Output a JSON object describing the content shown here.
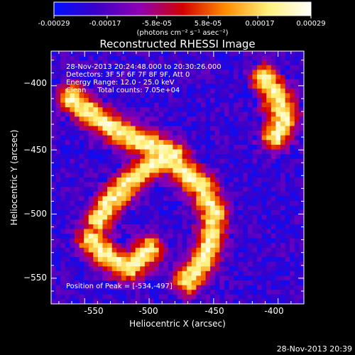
{
  "colorbar": {
    "ticks": [
      "-0.00029",
      "-0.00017",
      "-5.8e-05",
      "5.8e-05",
      "0.00017",
      "0.00029"
    ],
    "tick_values": [
      -0.00029,
      -0.00017,
      -5.8e-05,
      5.8e-05,
      0.00017,
      0.00029
    ],
    "range": [
      -0.00029,
      0.00029
    ],
    "units_label": "(photons cm⁻² s⁻¹ asec⁻²)",
    "colors": [
      "#0010ff",
      "#3b00c8",
      "#8f00b4",
      "#d20000",
      "#ff8c00",
      "#fff17a",
      "#ffffff"
    ]
  },
  "chart_data": {
    "type": "heatmap",
    "title": "Reconstructed RHESSI Image",
    "xlabel": "Heliocentric X (arcsec)",
    "ylabel": "Heliocentric Y (arcsec)",
    "xlim": [
      -576,
      -380
    ],
    "ylim": [
      -570,
      -373
    ],
    "x_ticks": [
      -550,
      -500,
      -450,
      -400
    ],
    "y_ticks": [
      -400,
      -450,
      -500,
      -550
    ],
    "x_tick_labels": [
      "-550",
      "-500",
      "-450",
      "-400"
    ],
    "y_tick_labels": [
      "−400",
      "−450",
      "−500",
      "−550"
    ],
    "peak": [
      -534,
      -497
    ],
    "annotations": {
      "time": "28-Nov-2013 20:24:48.000 to 20:30:26.000",
      "detectors": "Detectors: 3F 5F 6F 7F 8F 9F, Att 0",
      "energy": "Energy Range: 12.0 - 25.0 keV",
      "method": "Clean     Total counts: 7.05e+04",
      "peak_text": "Position of Peak = [-534,-497]"
    },
    "bright_structures": [
      {
        "x": [
          -560,
          -540,
          -525,
          -510,
          -495,
          -480
        ],
        "y": [
          -410,
          -425,
          -435,
          -442,
          -448,
          -455
        ]
      },
      {
        "x": [
          -540,
          -530,
          -515,
          -500,
          -488,
          -480,
          -470,
          -458,
          -450,
          -452,
          -460,
          -470
        ],
        "y": [
          -505,
          -490,
          -475,
          -462,
          -455,
          -460,
          -470,
          -480,
          -500,
          -520,
          -540,
          -552
        ]
      },
      {
        "x": [
          -545,
          -530,
          -515,
          -500
        ],
        "y": [
          -520,
          -535,
          -542,
          -528
        ]
      },
      {
        "x": [
          -410,
          -400,
          -395,
          -402
        ],
        "y": [
          -395,
          -410,
          -425,
          -440
        ]
      }
    ]
  },
  "footer": {
    "timestamp": "28-Nov-2013 20:39"
  }
}
